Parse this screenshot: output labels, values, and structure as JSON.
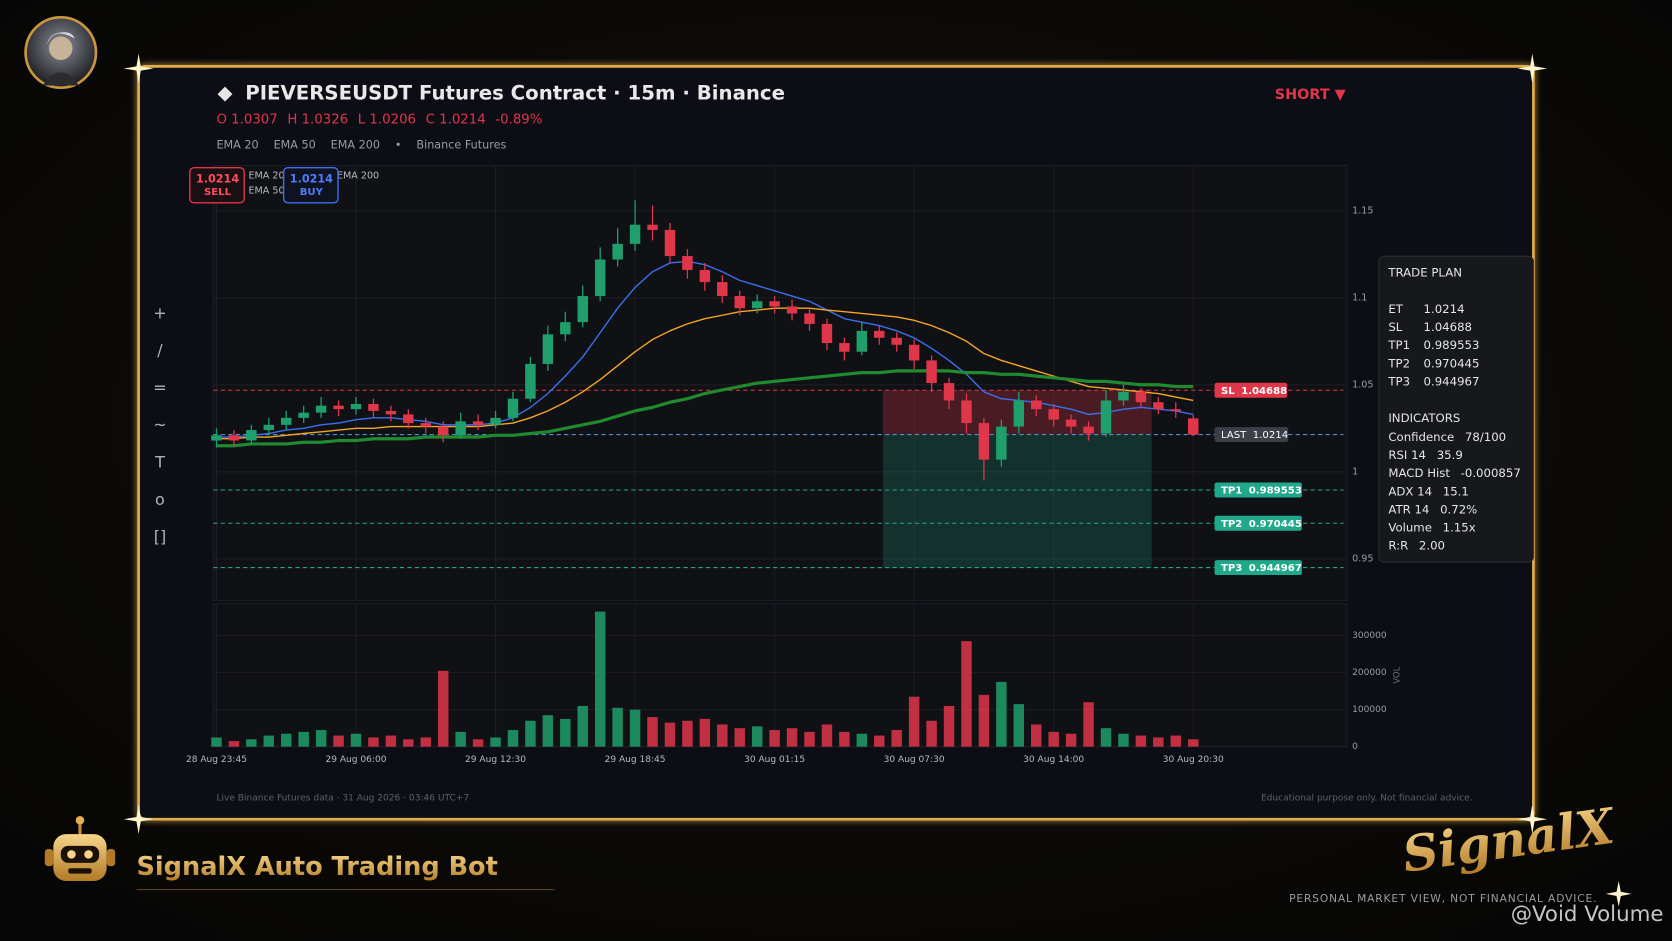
{
  "header": {
    "title": "PIEVERSEUSDT Futures Contract · 15m · Binance",
    "ohlc": [
      "O 1.0307",
      "H 1.0326",
      "L 1.0206",
      "C 1.0214",
      "-0.89%"
    ],
    "legend": [
      "EMA 20",
      "EMA 50",
      "EMA 200",
      "•",
      "Binance Futures"
    ],
    "side": "SHORT ▼"
  },
  "buttons": [
    {
      "price": "1.0214",
      "label": "SELL"
    },
    {
      "price": "1.0214",
      "label": "BUY"
    }
  ],
  "toolbar": [
    "+",
    "/",
    "=",
    "~",
    "T",
    "o",
    "[]"
  ],
  "chart_data": {
    "type": "candlestick",
    "up_color": "#1f9f6c",
    "down_color": "#e0364a",
    "grid": true,
    "ylim": [
      0.926,
      1.176
    ],
    "yticks": [
      0.95,
      1,
      1.05,
      1.1,
      1.15
    ],
    "xticks": [
      {
        "value": 0,
        "label": "28 Aug 23:45"
      },
      {
        "value": 8,
        "label": "29 Aug 06:00"
      },
      {
        "value": 16,
        "label": "29 Aug 12:30"
      },
      {
        "value": 24,
        "label": "29 Aug 18:45"
      },
      {
        "value": 32,
        "label": "30 Aug 01:15"
      },
      {
        "value": 40,
        "label": "30 Aug 07:30"
      },
      {
        "value": 48,
        "label": "30 Aug 14:00"
      },
      {
        "value": 56,
        "label": "30 Aug 20:30"
      }
    ],
    "open": [
      1.018,
      1.021,
      1.018,
      1.024,
      1.027,
      1.031,
      1.034,
      1.038,
      1.036,
      1.039,
      1.035,
      1.033,
      1.028,
      1.026,
      1.021,
      1.029,
      1.027,
      1.031,
      1.042,
      1.062,
      1.079,
      1.086,
      1.101,
      1.122,
      1.131,
      1.142,
      1.139,
      1.124,
      1.116,
      1.109,
      1.101,
      1.094,
      1.098,
      1.095,
      1.091,
      1.085,
      1.074,
      1.069,
      1.081,
      1.077,
      1.073,
      1.064,
      1.051,
      1.041,
      1.028,
      1.007,
      1.026,
      1.041,
      1.036,
      1.03,
      1.026,
      1.022,
      1.041,
      1.046,
      1.04,
      1.036,
      1.0307
    ],
    "high": [
      1.025,
      1.024,
      1.027,
      1.031,
      1.035,
      1.038,
      1.043,
      1.041,
      1.043,
      1.042,
      1.038,
      1.036,
      1.031,
      1.029,
      1.034,
      1.033,
      1.035,
      1.046,
      1.066,
      1.084,
      1.092,
      1.107,
      1.129,
      1.14,
      1.156,
      1.153,
      1.143,
      1.128,
      1.12,
      1.113,
      1.104,
      1.102,
      1.101,
      1.099,
      1.094,
      1.088,
      1.077,
      1.086,
      1.084,
      1.08,
      1.076,
      1.067,
      1.054,
      1.045,
      1.031,
      1.03,
      1.046,
      1.044,
      1.039,
      1.033,
      1.029,
      1.047,
      1.05,
      1.048,
      1.043,
      1.04,
      1.0326
    ],
    "low": [
      1.014,
      1.015,
      1.016,
      1.021,
      1.024,
      1.028,
      1.031,
      1.032,
      1.033,
      1.031,
      1.029,
      1.025,
      1.022,
      1.017,
      1.019,
      1.024,
      1.025,
      1.029,
      1.04,
      1.058,
      1.075,
      1.083,
      1.098,
      1.118,
      1.127,
      1.133,
      1.12,
      1.111,
      1.104,
      1.097,
      1.09,
      1.091,
      1.091,
      1.087,
      1.081,
      1.07,
      1.064,
      1.067,
      1.073,
      1.069,
      1.059,
      1.046,
      1.036,
      1.022,
      0.995,
      1.003,
      1.022,
      1.032,
      1.026,
      1.022,
      1.018,
      1.02,
      1.038,
      1.037,
      1.033,
      1.031,
      1.0206
    ],
    "close": [
      1.021,
      1.018,
      1.024,
      1.027,
      1.031,
      1.034,
      1.038,
      1.036,
      1.039,
      1.035,
      1.033,
      1.028,
      1.026,
      1.021,
      1.029,
      1.027,
      1.031,
      1.042,
      1.062,
      1.079,
      1.086,
      1.101,
      1.122,
      1.131,
      1.142,
      1.139,
      1.124,
      1.116,
      1.109,
      1.101,
      1.094,
      1.098,
      1.095,
      1.091,
      1.085,
      1.074,
      1.069,
      1.081,
      1.077,
      1.073,
      1.064,
      1.051,
      1.041,
      1.028,
      1.007,
      1.026,
      1.041,
      1.036,
      1.03,
      1.026,
      1.022,
      1.041,
      1.046,
      1.04,
      1.036,
      1.035,
      1.0214
    ],
    "series": [
      {
        "name": "EMA 20",
        "color": "#3b6ff0",
        "width": 1.3,
        "values": [
          1.02,
          1.02,
          1.021,
          1.022,
          1.024,
          1.025,
          1.027,
          1.028,
          1.03,
          1.031,
          1.031,
          1.03,
          1.029,
          1.027,
          1.027,
          1.027,
          1.028,
          1.031,
          1.037,
          1.045,
          1.055,
          1.066,
          1.08,
          1.094,
          1.106,
          1.115,
          1.12,
          1.121,
          1.119,
          1.115,
          1.11,
          1.107,
          1.104,
          1.101,
          1.098,
          1.093,
          1.088,
          1.086,
          1.084,
          1.081,
          1.077,
          1.071,
          1.064,
          1.056,
          1.046,
          1.042,
          1.041,
          1.04,
          1.038,
          1.036,
          1.033,
          1.034,
          1.036,
          1.037,
          1.036,
          1.035,
          1.033
        ]
      },
      {
        "name": "EMA 50",
        "color": "#f5a623",
        "width": 1.3,
        "values": [
          1.019,
          1.019,
          1.02,
          1.02,
          1.021,
          1.022,
          1.023,
          1.024,
          1.025,
          1.025,
          1.026,
          1.026,
          1.026,
          1.026,
          1.026,
          1.026,
          1.027,
          1.028,
          1.031,
          1.035,
          1.04,
          1.046,
          1.053,
          1.061,
          1.069,
          1.076,
          1.081,
          1.085,
          1.088,
          1.09,
          1.092,
          1.093,
          1.094,
          1.094,
          1.094,
          1.093,
          1.092,
          1.091,
          1.09,
          1.089,
          1.087,
          1.084,
          1.08,
          1.075,
          1.068,
          1.064,
          1.061,
          1.058,
          1.055,
          1.052,
          1.049,
          1.048,
          1.047,
          1.046,
          1.045,
          1.043,
          1.041
        ]
      },
      {
        "name": "EMA 200",
        "color": "#1f8a2e",
        "width": 3,
        "values": [
          1.015,
          1.015,
          1.016,
          1.016,
          1.016,
          1.017,
          1.017,
          1.018,
          1.018,
          1.019,
          1.019,
          1.019,
          1.02,
          1.02,
          1.02,
          1.02,
          1.021,
          1.021,
          1.022,
          1.023,
          1.025,
          1.027,
          1.029,
          1.032,
          1.035,
          1.037,
          1.04,
          1.042,
          1.045,
          1.047,
          1.049,
          1.051,
          1.052,
          1.053,
          1.054,
          1.055,
          1.056,
          1.057,
          1.057,
          1.058,
          1.058,
          1.058,
          1.058,
          1.057,
          1.057,
          1.056,
          1.056,
          1.055,
          1.054,
          1.053,
          1.052,
          1.052,
          1.051,
          1.05,
          1.05,
          1.049,
          1.049
        ]
      }
    ],
    "volume": {
      "label": "VOL",
      "ylim": [
        0,
        386000
      ],
      "yticks": [
        0,
        100000,
        200000,
        300000
      ],
      "values": [
        25000,
        15000,
        20000,
        30000,
        35000,
        40000,
        45000,
        30000,
        35000,
        25000,
        30000,
        20000,
        25000,
        205000,
        40000,
        20000,
        25000,
        45000,
        70000,
        85000,
        75000,
        110000,
        365000,
        105000,
        100000,
        80000,
        65000,
        70000,
        75000,
        60000,
        50000,
        55000,
        45000,
        50000,
        40000,
        60000,
        40000,
        35000,
        30000,
        45000,
        135000,
        70000,
        110000,
        285000,
        140000,
        175000,
        115000,
        60000,
        40000,
        35000,
        120000,
        50000,
        35000,
        30000,
        25000,
        30000,
        20000
      ]
    },
    "levels": [
      {
        "name": "SL",
        "value": 1.04688,
        "color": "#e0364a",
        "box": "#e0364a"
      },
      {
        "name": "LAST",
        "value": 1.0214,
        "color": "#4a90d9",
        "box": "#3a3f48"
      },
      {
        "name": "TP1",
        "value": 0.989553,
        "color": "#1fa88a",
        "box": "#1fa88a"
      },
      {
        "name": "TP2",
        "value": 0.970445,
        "color": "#1fa88a",
        "box": "#1fa88a"
      },
      {
        "name": "TP3",
        "value": 0.944967,
        "color": "#1fa88a",
        "box": "#1fa88a"
      }
    ]
  },
  "trade_plan": {
    "title": "TRADE PLAN",
    "plan": [
      {
        "label": "ET",
        "value": "1.0214"
      },
      {
        "label": "SL",
        "value": "1.04688"
      },
      {
        "label": "TP1",
        "value": "0.989553"
      },
      {
        "label": "TP2",
        "value": "0.970445"
      },
      {
        "label": "TP3",
        "value": "0.944967"
      }
    ],
    "indicators_title": "INDICATORS",
    "indicators": [
      {
        "label": "Confidence",
        "value": "78/100"
      },
      {
        "label": "RSI 14",
        "value": "35.9"
      },
      {
        "label": "MACD Hist",
        "value": "-0.000857"
      },
      {
        "label": "ADX 14",
        "value": "15.1"
      },
      {
        "label": "ATR 14",
        "value": "0.72%"
      },
      {
        "label": "Volume",
        "value": "1.15x"
      },
      {
        "label": "R:R",
        "value": "2.00"
      }
    ]
  },
  "footer": {
    "left": "Live Binance Futures data  ·  31 Aug 2026  ·  03:46 UTC+7",
    "right": "Educational purpose only. Not financial advice."
  },
  "branding": {
    "bot": "SignalX Auto Trading Bot",
    "logo": "SignalX",
    "disclaimer": "PERSONAL MARKET VIEW, NOT FINANCIAL ADVICE.",
    "watermark": "@Void Volume"
  }
}
